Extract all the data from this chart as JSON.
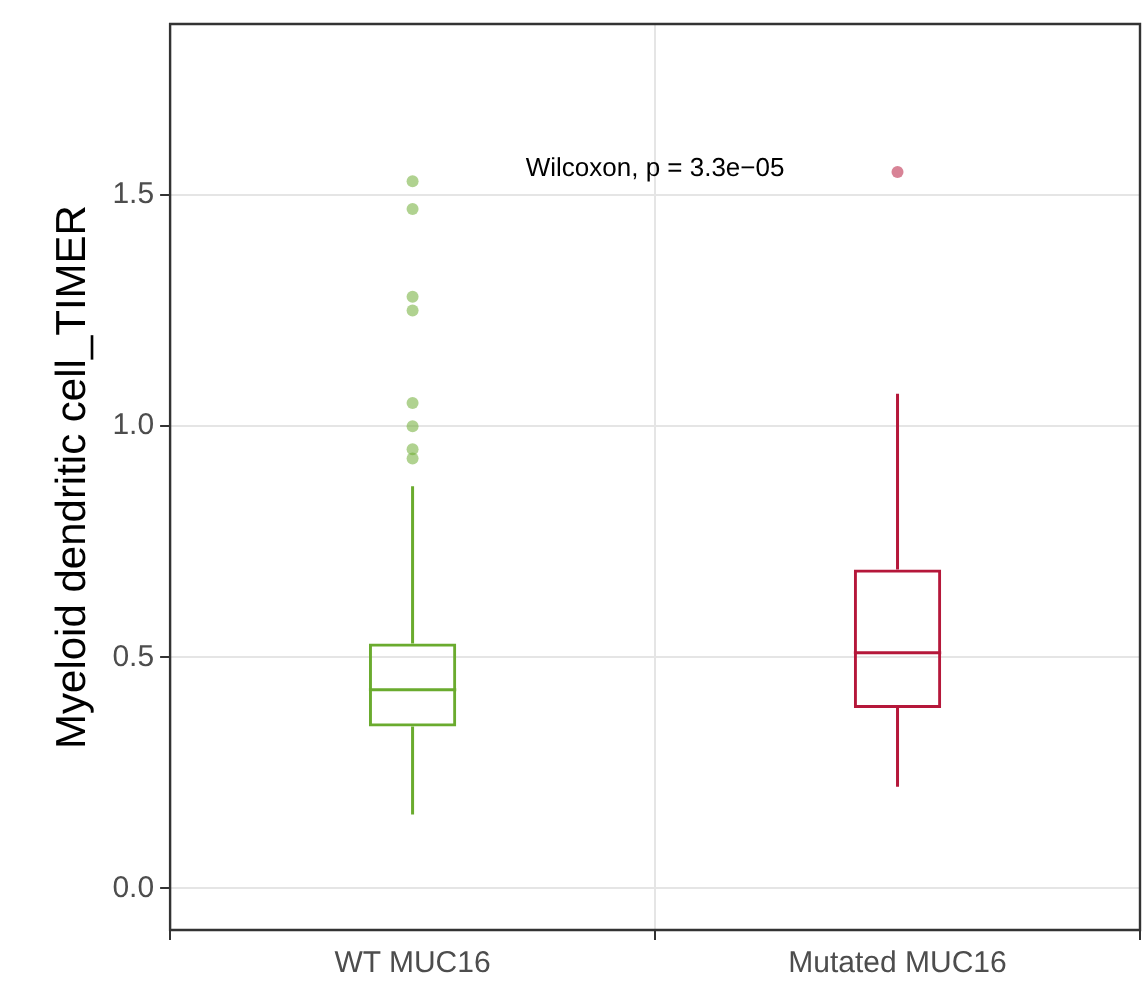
{
  "chart_data": {
    "type": "box",
    "ylabel": "Myeloid dendritic cell_TIMER",
    "categories": [
      "WT MUC16",
      "Mutated MUC16"
    ],
    "colors": [
      "#6aab2e",
      "#b5173a"
    ],
    "boxes": [
      {
        "low": 0.16,
        "q1": 0.35,
        "median": 0.43,
        "q3": 0.53,
        "high": 0.87,
        "outliers": [
          0.93,
          0.95,
          1.0,
          1.05,
          1.25,
          1.28,
          1.47,
          1.53
        ]
      },
      {
        "low": 0.22,
        "q1": 0.39,
        "median": 0.51,
        "q3": 0.69,
        "high": 1.07,
        "outliers": [
          1.55
        ]
      }
    ],
    "ylim": [
      -0.09,
      1.87
    ],
    "yticks": [
      {
        "value": 0,
        "label": "0.0"
      },
      {
        "value": 0.5,
        "label": "0.5"
      },
      {
        "value": 1,
        "label": "1.0"
      },
      {
        "value": 1.5,
        "label": "1.5"
      }
    ],
    "grid": true,
    "legend": false,
    "annotations": [
      "Wilcoxon, p = 3.3e−05"
    ]
  }
}
